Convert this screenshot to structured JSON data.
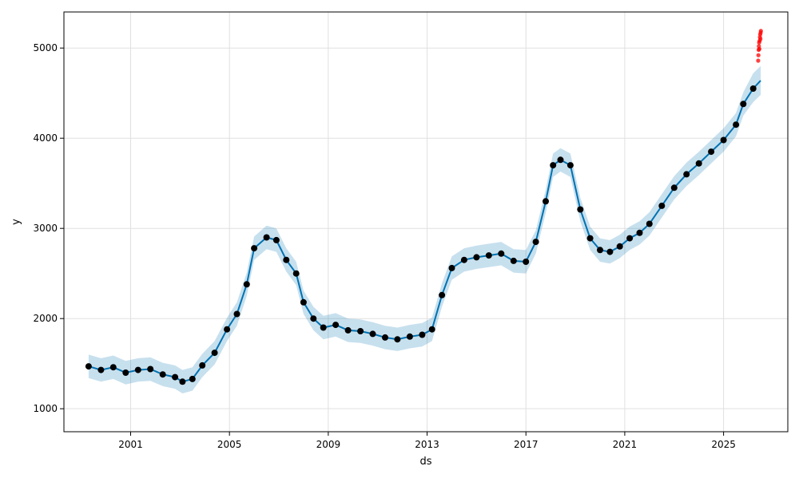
{
  "chart_data": {
    "type": "scatter",
    "title": "",
    "xlabel": "ds",
    "ylabel": "y",
    "x_ticks": [
      "2001",
      "2005",
      "2009",
      "2013",
      "2017",
      "2021",
      "2025"
    ],
    "y_ticks": [
      "1000",
      "2000",
      "3000",
      "4000",
      "5000"
    ],
    "xlim": [
      1998.3,
      2027.6
    ],
    "ylim": [
      745,
      5400
    ],
    "grid": true,
    "legend": "none",
    "colors": {
      "observed": "#000000",
      "highlight": "#ff0000",
      "forecast_line": "#0072B2",
      "uncertainty_band": "#0072B2"
    },
    "series": [
      {
        "role": "forecast",
        "x": [
          1999.3,
          1999.8,
          2000.3,
          2000.8,
          2001.3,
          2001.8,
          2002.3,
          2002.8,
          2003.1,
          2003.5,
          2003.9,
          2004.4,
          2004.9,
          2005.3,
          2005.7,
          2006.0,
          2006.5,
          2006.9,
          2007.3,
          2007.7,
          2008.0,
          2008.4,
          2008.8,
          2009.3,
          2009.8,
          2010.3,
          2010.8,
          2011.3,
          2011.8,
          2012.3,
          2012.8,
          2013.2,
          2013.6,
          2014.0,
          2014.5,
          2015.0,
          2015.5,
          2016.0,
          2016.5,
          2017.0,
          2017.4,
          2017.8,
          2018.1,
          2018.4,
          2018.8,
          2019.2,
          2019.6,
          2020.0,
          2020.4,
          2020.8,
          2021.2,
          2021.6,
          2022.0,
          2022.5,
          2023.0,
          2023.5,
          2024.0,
          2024.5,
          2025.0,
          2025.5,
          2025.8,
          2026.2,
          2026.5
        ],
        "y": [
          1470,
          1430,
          1460,
          1400,
          1430,
          1440,
          1380,
          1350,
          1300,
          1330,
          1480,
          1620,
          1880,
          2050,
          2380,
          2780,
          2900,
          2870,
          2650,
          2500,
          2180,
          2000,
          1900,
          1930,
          1870,
          1860,
          1830,
          1790,
          1770,
          1800,
          1820,
          1880,
          2260,
          2560,
          2650,
          2680,
          2700,
          2720,
          2640,
          2630,
          2850,
          3300,
          3700,
          3760,
          3700,
          3210,
          2890,
          2760,
          2740,
          2800,
          2890,
          2950,
          3050,
          3250,
          3450,
          3600,
          3720,
          3850,
          3980,
          4150,
          4380,
          4550,
          4640
        ],
        "yhat_lower": [
          1340,
          1300,
          1330,
          1270,
          1300,
          1310,
          1250,
          1220,
          1170,
          1200,
          1350,
          1490,
          1750,
          1920,
          2250,
          2650,
          2770,
          2740,
          2520,
          2370,
          2050,
          1870,
          1770,
          1800,
          1740,
          1730,
          1700,
          1660,
          1640,
          1670,
          1690,
          1750,
          2130,
          2430,
          2520,
          2550,
          2570,
          2590,
          2510,
          2500,
          2720,
          3170,
          3570,
          3630,
          3570,
          3080,
          2760,
          2630,
          2610,
          2670,
          2760,
          2820,
          2920,
          3120,
          3320,
          3470,
          3590,
          3720,
          3850,
          4020,
          4250,
          4400,
          4480
        ],
        "yhat_upper": [
          1600,
          1560,
          1590,
          1530,
          1560,
          1570,
          1510,
          1480,
          1430,
          1460,
          1610,
          1750,
          2010,
          2180,
          2510,
          2910,
          3030,
          3000,
          2780,
          2630,
          2310,
          2130,
          2030,
          2060,
          2000,
          1990,
          1960,
          1920,
          1900,
          1930,
          1950,
          2010,
          2390,
          2690,
          2780,
          2810,
          2830,
          2850,
          2770,
          2760,
          2980,
          3430,
          3830,
          3890,
          3830,
          3340,
          3020,
          2890,
          2870,
          2930,
          3020,
          3080,
          3180,
          3380,
          3580,
          3730,
          3850,
          3980,
          4110,
          4280,
          4510,
          4720,
          4800
        ]
      },
      {
        "role": "observed",
        "x": [
          1999.3,
          1999.8,
          2000.3,
          2000.8,
          2001.3,
          2001.8,
          2002.3,
          2002.8,
          2003.1,
          2003.5,
          2003.9,
          2004.4,
          2004.9,
          2005.3,
          2005.7,
          2006.0,
          2006.5,
          2006.9,
          2007.3,
          2007.7,
          2008.0,
          2008.4,
          2008.8,
          2009.3,
          2009.8,
          2010.3,
          2010.8,
          2011.3,
          2011.8,
          2012.3,
          2012.8,
          2013.2,
          2013.6,
          2014.0,
          2014.5,
          2015.0,
          2015.5,
          2016.0,
          2016.5,
          2017.0,
          2017.4,
          2017.8,
          2018.1,
          2018.4,
          2018.8,
          2019.2,
          2019.6,
          2020.0,
          2020.4,
          2020.8,
          2021.2,
          2021.6,
          2022.0,
          2022.5,
          2023.0,
          2023.5,
          2024.0,
          2024.5,
          2025.0,
          2025.5,
          2025.8,
          2026.2
        ],
        "y": [
          1470,
          1430,
          1460,
          1400,
          1430,
          1440,
          1380,
          1350,
          1300,
          1330,
          1480,
          1620,
          1880,
          2050,
          2380,
          2780,
          2900,
          2870,
          2650,
          2500,
          2180,
          2000,
          1900,
          1930,
          1870,
          1860,
          1830,
          1790,
          1770,
          1800,
          1820,
          1880,
          2260,
          2560,
          2650,
          2680,
          2700,
          2720,
          2640,
          2630,
          2850,
          3300,
          3700,
          3760,
          3700,
          3210,
          2890,
          2760,
          2740,
          2800,
          2890,
          2950,
          3050,
          3250,
          3450,
          3600,
          3720,
          3850,
          3980,
          4150,
          4380,
          4550
        ]
      },
      {
        "role": "observed_recent",
        "x": [
          2026.4,
          2026.41,
          2026.42,
          2026.43,
          2026.44,
          2026.45,
          2026.46,
          2026.47,
          2026.48,
          2026.49,
          2026.5,
          2026.51
        ],
        "y": [
          4860,
          4920,
          4980,
          5020,
          5060,
          4990,
          5080,
          5120,
          5150,
          5100,
          5170,
          5190
        ]
      }
    ]
  }
}
